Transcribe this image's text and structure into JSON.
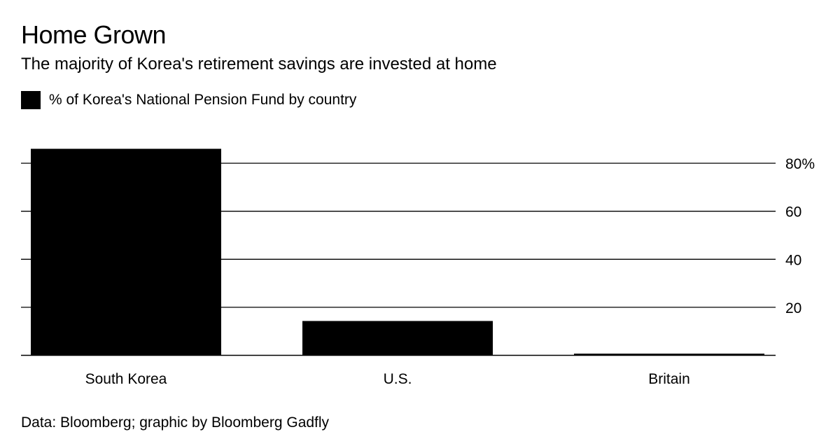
{
  "header": {
    "title": "Home Grown",
    "subtitle": "The majority of Korea's retirement savings are invested at home"
  },
  "legend": {
    "label": "% of Korea's National Pension Fund by country",
    "color": "#000000"
  },
  "source": "Data: Bloomberg; graphic by Bloomberg Gadfly",
  "chart_data": {
    "type": "bar",
    "categories": [
      "South Korea",
      "U.S.",
      "Britain"
    ],
    "series": [
      {
        "name": "% of Korea's National Pension Fund by country",
        "values": [
          86,
          14.3,
          0.7
        ]
      }
    ],
    "title": "Home Grown",
    "subtitle": "The majority of Korea's retirement savings are invested at home",
    "xlabel": "",
    "ylabel": "",
    "ylim": [
      0,
      86
    ],
    "yticks": [
      20,
      40,
      60,
      80
    ],
    "ytick_labels": [
      "20",
      "40",
      "60",
      "80%"
    ],
    "grid": true,
    "legend_position": "top-left",
    "y_axis_side": "right",
    "bar_color": "#000000",
    "grid_color": "#000000"
  }
}
